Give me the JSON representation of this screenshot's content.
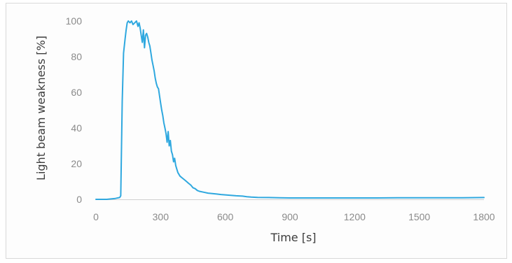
{
  "chart_data": {
    "type": "line",
    "title": "",
    "xlabel": "Time [s]",
    "ylabel": "Light beam weakness [%]",
    "xlim": [
      0,
      1800
    ],
    "ylim": [
      0,
      100
    ],
    "x_ticks": [
      "0",
      "300",
      "600",
      "900",
      "1200",
      "1500",
      "1800"
    ],
    "y_ticks": [
      "0",
      "20",
      "40",
      "60",
      "80",
      "100"
    ],
    "grid": false,
    "legend": "none",
    "line_color": "#2fa8df",
    "series": [
      {
        "x": [
          0,
          50,
          90,
          110,
          115,
          122,
          128,
          135,
          140,
          145,
          150,
          158,
          165,
          172,
          180,
          188,
          195,
          200,
          205,
          210,
          215,
          220,
          225,
          230,
          235,
          240,
          245,
          250,
          255,
          260,
          265,
          270,
          275,
          280,
          285,
          290,
          295,
          300,
          305,
          310,
          315,
          320,
          325,
          330,
          335,
          340,
          345,
          350,
          355,
          360,
          365,
          370,
          375,
          380,
          390,
          400,
          410,
          420,
          430,
          440,
          450,
          460,
          470,
          480,
          500,
          520,
          540,
          560,
          580,
          600,
          620,
          650,
          680,
          700,
          720,
          750,
          800,
          850,
          900,
          1000,
          1100,
          1200,
          1300,
          1400,
          1500,
          1600,
          1700,
          1800
        ],
        "y": [
          0,
          0,
          0.5,
          1,
          2,
          55,
          82,
          90,
          95,
          99,
          100,
          99,
          100,
          98,
          99,
          100,
          97,
          99,
          96,
          92,
          88,
          95,
          85,
          92,
          93,
          91,
          88,
          86,
          82,
          78,
          75,
          72,
          68,
          65,
          63,
          62,
          58,
          54,
          50,
          47,
          43,
          40,
          37,
          32,
          38,
          30,
          33,
          27,
          25,
          21,
          23,
          19,
          17,
          15,
          13,
          12,
          11,
          10,
          9,
          8,
          6.5,
          6,
          5,
          4.5,
          4,
          3.5,
          3.2,
          3,
          2.7,
          2.5,
          2.3,
          2,
          1.8,
          1.5,
          1.3,
          1.1,
          1,
          0.9,
          0.8,
          0.8,
          0.8,
          0.8,
          0.8,
          0.9,
          0.9,
          0.9,
          0.9,
          1
        ]
      }
    ]
  }
}
